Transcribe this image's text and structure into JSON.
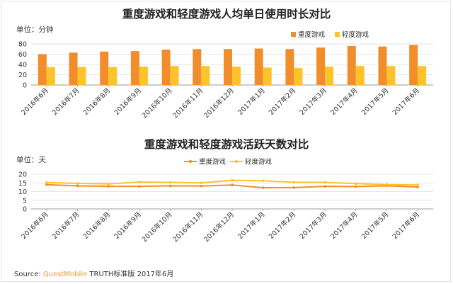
{
  "source": {
    "label": "Source:",
    "brand": "QuestMobile",
    "rest": " TRUTH标准版 2017年6月"
  },
  "colors": {
    "heavy": "#f28d2c",
    "light": "#fcc42a",
    "grid": "#dcdcdc",
    "axis": "#9a9a9a"
  },
  "chart_data": [
    {
      "type": "bar",
      "title": "重度游戏和轻度游戏人均单日使用时长对比",
      "unit": "单位：分钟",
      "categories": [
        "2016年6月",
        "2016年7月",
        "2016年8月",
        "2016年9月",
        "2016年10月",
        "2016年11月",
        "2016年12月",
        "2017年1月",
        "2017年2月",
        "2017年3月",
        "2017年4月",
        "2017年5月",
        "2017年6月"
      ],
      "series": [
        {
          "name": "重度游戏",
          "values": [
            60,
            63,
            65,
            66,
            69,
            70,
            70,
            71,
            70,
            73,
            76,
            75,
            78
          ]
        },
        {
          "name": "轻度游戏",
          "values": [
            35,
            35,
            35,
            36,
            37,
            37,
            36,
            34,
            33,
            36,
            37,
            37,
            37
          ]
        }
      ],
      "yticks": [
        0,
        20,
        40,
        60,
        80
      ],
      "ylim": [
        0,
        80
      ],
      "grid": true,
      "legend": "top-right"
    },
    {
      "type": "line",
      "title": "重度游戏和轻度游戏活跃天数对比",
      "unit": "单位：天",
      "categories": [
        "2016年6月",
        "2016年7月",
        "2016年8月",
        "2016年9月",
        "2016年10月",
        "2016年11月",
        "2016年12月",
        "2017年1月",
        "2017年2月",
        "2017年3月",
        "2017年4月",
        "2017年5月",
        "2017年6月"
      ],
      "series": [
        {
          "name": "重度游戏",
          "values": [
            14.0,
            13.3,
            13.0,
            13.0,
            13.3,
            13.2,
            13.8,
            12.2,
            12.3,
            13.0,
            12.9,
            13.3,
            12.6
          ]
        },
        {
          "name": "轻度游戏",
          "values": [
            15.2,
            14.7,
            14.4,
            15.5,
            15.3,
            15.0,
            16.5,
            16.2,
            15.4,
            15.3,
            14.6,
            14.0,
            13.8
          ]
        }
      ],
      "yticks": [
        0,
        5,
        10,
        15,
        20
      ],
      "ylim": [
        0,
        20
      ],
      "grid": true,
      "legend": "top-right"
    }
  ]
}
